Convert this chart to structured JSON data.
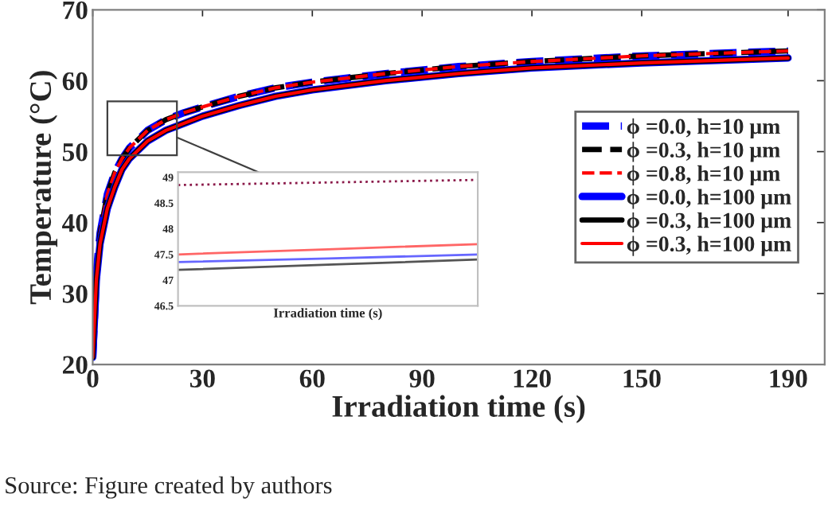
{
  "chart_data": [
    {
      "type": "line",
      "xlabel": "Irradiation time (s)",
      "ylabel": "Temperature (°C)",
      "x": [
        0,
        1,
        2,
        4,
        6,
        8,
        10,
        15,
        20,
        25,
        30,
        40,
        50,
        60,
        80,
        100,
        120,
        150,
        190
      ],
      "xlim": [
        0,
        200
      ],
      "xticks": [
        0,
        30,
        60,
        90,
        120,
        150,
        190
      ],
      "ylim": [
        20,
        70
      ],
      "yticks": [
        20,
        30,
        40,
        50,
        60,
        70
      ],
      "grid": false,
      "legend": "right",
      "marker": "none",
      "annotations": [
        "Source: Figure created by authors"
      ],
      "series": [
        {
          "name": "ϕ =0.0, h=10 μm",
          "color": "#0000ff",
          "line_style": "dashed",
          "values": [
            21,
            33,
            38.5,
            44,
            47,
            49,
            50.5,
            53,
            54.5,
            55.5,
            56.3,
            57.8,
            59,
            59.8,
            61,
            62,
            62.7,
            63.5,
            64.2
          ]
        },
        {
          "name": "ϕ =0.3, h=10 μm",
          "color": "#000000",
          "line_style": "dashed",
          "values": [
            21,
            33,
            38.5,
            44,
            47,
            49,
            50.5,
            53,
            54.5,
            55.5,
            56.3,
            57.8,
            59,
            59.8,
            61,
            62,
            62.7,
            63.5,
            64.2
          ]
        },
        {
          "name": "ϕ =0.8, h=10 μm",
          "color": "#ff0000",
          "line_style": "dashed",
          "values": [
            21,
            33,
            38.5,
            44,
            47,
            49,
            50.5,
            53,
            54.5,
            55.5,
            56.3,
            57.8,
            59,
            59.8,
            61,
            62,
            62.7,
            63.5,
            64.2
          ]
        },
        {
          "name": "ϕ =0.0, h=100 μm",
          "color": "#0000ff",
          "line_style": "solid",
          "values": [
            21,
            32,
            37,
            42,
            45,
            47.5,
            49,
            51.5,
            53,
            54,
            55,
            56.5,
            57.8,
            58.7,
            60,
            61,
            61.8,
            62.5,
            63.2
          ]
        },
        {
          "name": "ϕ =0.3, h=100 μm",
          "color": "#000000",
          "line_style": "solid",
          "values": [
            21,
            32,
            37,
            42,
            45,
            47.5,
            49,
            51.5,
            53,
            54,
            55,
            56.5,
            57.8,
            58.7,
            60,
            61,
            61.8,
            62.5,
            63.2
          ]
        },
        {
          "name": "ϕ =0.3, h=100 μm",
          "color": "#ff0000",
          "line_style": "solid",
          "values": [
            21,
            32,
            37,
            42,
            45,
            47.5,
            49,
            51.5,
            53,
            54,
            55,
            56.5,
            57.8,
            58.7,
            60,
            61,
            61.8,
            62.5,
            63.2
          ]
        }
      ]
    },
    {
      "type": "line",
      "xlabel": "Irradiation time (s)",
      "categories": [
        null,
        null,
        null
      ],
      "ylim": [
        46.5,
        49.1
      ],
      "yticks": [
        46.5,
        47,
        47.5,
        48,
        48.5,
        49
      ],
      "tick_labels": "y",
      "grid": false,
      "marker": "none",
      "series": [
        {
          "color": "#8b1a4a",
          "line_style": "dotted",
          "values": [
            48.85,
            48.9,
            48.95
          ]
        },
        {
          "color": "#ff6666",
          "line_style": "solid",
          "values": [
            47.5,
            47.6,
            47.7
          ]
        },
        {
          "color": "#6666ff",
          "line_style": "solid",
          "values": [
            47.35,
            47.42,
            47.5
          ]
        },
        {
          "color": "#555555",
          "line_style": "solid",
          "values": [
            47.2,
            47.3,
            47.4
          ]
        }
      ]
    }
  ]
}
